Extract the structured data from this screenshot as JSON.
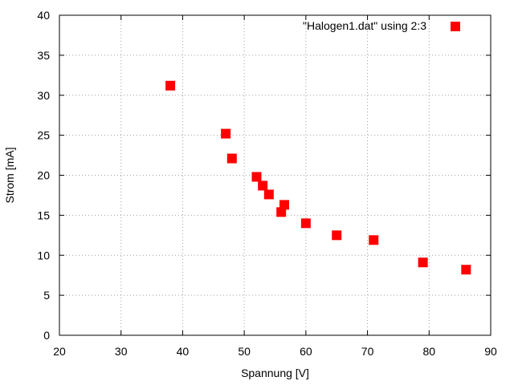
{
  "chart_data": {
    "type": "scatter",
    "title": "",
    "xlabel": "Spannung [V]",
    "ylabel": "Strom [mA]",
    "xlim": [
      20,
      90
    ],
    "ylim": [
      0,
      40
    ],
    "xticks": [
      20,
      30,
      40,
      50,
      60,
      70,
      80,
      90
    ],
    "yticks": [
      0,
      5,
      10,
      15,
      20,
      25,
      30,
      35,
      40
    ],
    "grid": true,
    "legend_position": "top-right",
    "series": [
      {
        "name": "\"Halogen1.dat\" using 2:3",
        "color": "#ff0000",
        "marker": "filled-square",
        "x": [
          38,
          47,
          48,
          52,
          53,
          54,
          56,
          56.5,
          60,
          65,
          71,
          79,
          86
        ],
        "y": [
          31.2,
          25.2,
          22.1,
          19.8,
          18.7,
          17.6,
          15.4,
          16.3,
          14.0,
          12.5,
          11.9,
          9.1,
          8.2
        ]
      }
    ]
  }
}
